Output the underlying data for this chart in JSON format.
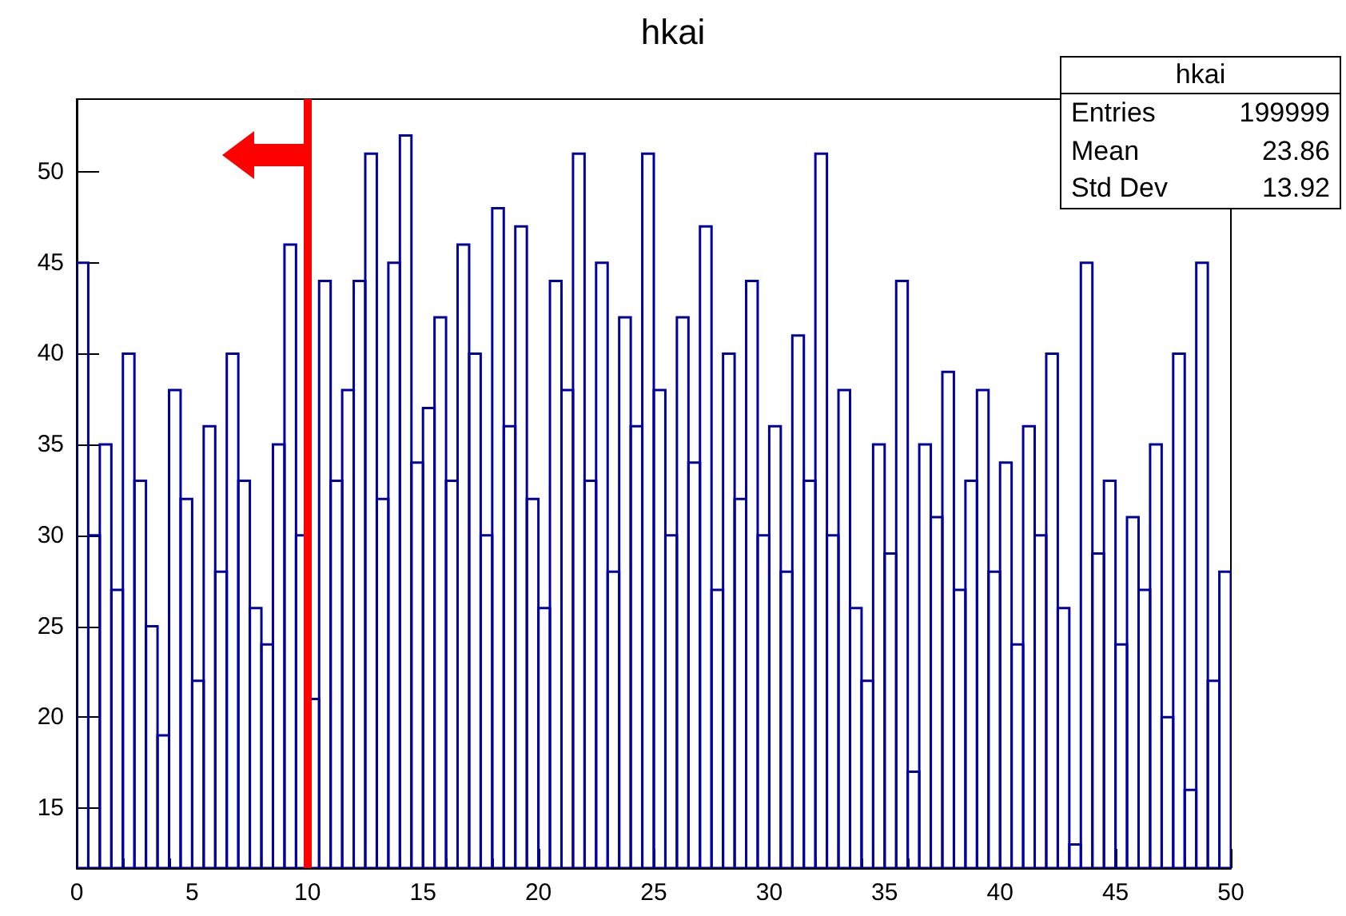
{
  "chart_data": {
    "type": "histogram",
    "title": "hkai",
    "bins": [
      0,
      0.5,
      1,
      1.5,
      2,
      2.5,
      3,
      3.5,
      4,
      4.5,
      5,
      5.5,
      6,
      6.5,
      7,
      7.5,
      8,
      8.5,
      9,
      9.5,
      10,
      10.5,
      11,
      11.5,
      12,
      12.5,
      13,
      13.5,
      14,
      14.5,
      15,
      15.5,
      16,
      16.5,
      17,
      17.5,
      18,
      18.5,
      19,
      19.5,
      20,
      20.5,
      21,
      21.5,
      22,
      22.5,
      23,
      23.5,
      24,
      24.5,
      25,
      25.5,
      26,
      26.5,
      27,
      27.5,
      28,
      28.5,
      29,
      29.5,
      30,
      30.5,
      31,
      31.5,
      32,
      32.5,
      33,
      33.5,
      34,
      34.5,
      35,
      35.5,
      36,
      36.5,
      37,
      37.5,
      38,
      38.5,
      39,
      39.5,
      40,
      40.5,
      41,
      41.5,
      42,
      42.5,
      43,
      43.5,
      44,
      44.5,
      45,
      45.5,
      46,
      46.5,
      47,
      47.5,
      48,
      48.5,
      49,
      49.5,
      50
    ],
    "values": [
      45,
      30,
      35,
      27,
      40,
      33,
      25,
      19,
      38,
      32,
      22,
      36,
      28,
      40,
      33,
      26,
      24,
      35,
      46,
      30,
      21,
      44,
      33,
      38,
      44,
      51,
      32,
      45,
      52,
      34,
      37,
      42,
      33,
      46,
      40,
      30,
      48,
      36,
      47,
      32,
      26,
      44,
      38,
      51,
      33,
      45,
      28,
      42,
      36,
      51,
      38,
      30,
      42,
      34,
      47,
      27,
      40,
      32,
      44,
      30,
      36,
      28,
      41,
      33,
      51,
      30,
      38,
      26,
      22,
      35,
      29,
      44,
      17,
      35,
      31,
      39,
      27,
      33,
      38,
      28,
      34,
      24,
      36,
      30,
      40,
      26,
      13,
      45,
      29,
      33,
      24,
      31,
      27,
      35,
      20,
      40,
      16,
      45,
      22,
      28
    ],
    "color": "#0000a0",
    "xlim": [
      0,
      50
    ],
    "xticks": [
      0,
      5,
      10,
      15,
      20,
      25,
      30,
      35,
      40,
      45,
      50
    ],
    "ylim": [
      11.7,
      54
    ],
    "yticks": [
      15,
      20,
      25,
      30,
      35,
      40,
      45,
      50
    ],
    "ref_lines": [
      {
        "axis": "x",
        "value": 10,
        "color": "#ff0000"
      }
    ],
    "annotations": [
      "hkai",
      "Entries 199999",
      "Mean 23.86",
      "Std Dev 13.92"
    ],
    "grid": false,
    "legend": false
  }
}
